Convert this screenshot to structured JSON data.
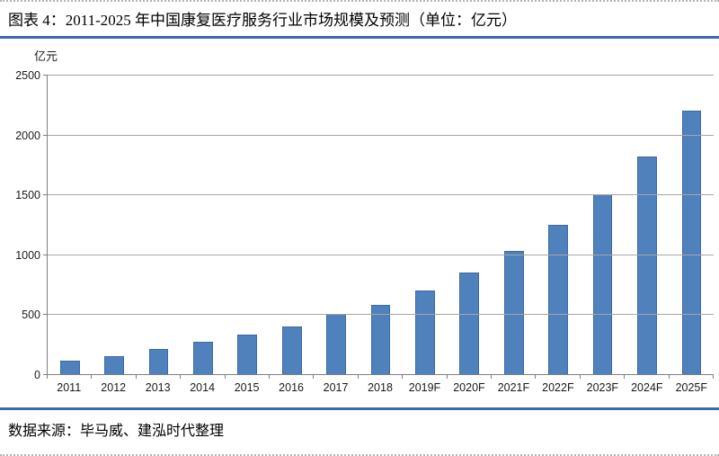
{
  "header": {
    "title": "图表 4：2011-2025 年中国康复医疗服务行业市场规模及预测（单位：亿元）"
  },
  "footer": {
    "source": "数据来源：毕马威、建泓时代整理"
  },
  "colors": {
    "bar_fill": "#4f81bd",
    "bar_border": "#3e6a9e",
    "accent_divider": "#3b6ab5",
    "gridline": "#a6a6a6",
    "axis": "#7f7f7f"
  },
  "chart_data": {
    "type": "bar",
    "title": "2011-2025 年中国康复医疗服务行业市场规模及预测",
    "unit_label": "亿元",
    "categories": [
      "2011",
      "2012",
      "2013",
      "2014",
      "2015",
      "2016",
      "2017",
      "2018",
      "2019F",
      "2020F",
      "2021F",
      "2022F",
      "2023F",
      "2024F",
      "2025F"
    ],
    "values": [
      110,
      150,
      210,
      270,
      330,
      400,
      500,
      580,
      700,
      850,
      1030,
      1250,
      1500,
      1820,
      2200
    ],
    "xlabel": "",
    "ylabel": "亿元",
    "ylim": [
      0,
      2500
    ],
    "yticks": [
      0,
      500,
      1000,
      1500,
      2000,
      2500
    ],
    "grid": true,
    "legend_position": "none"
  }
}
